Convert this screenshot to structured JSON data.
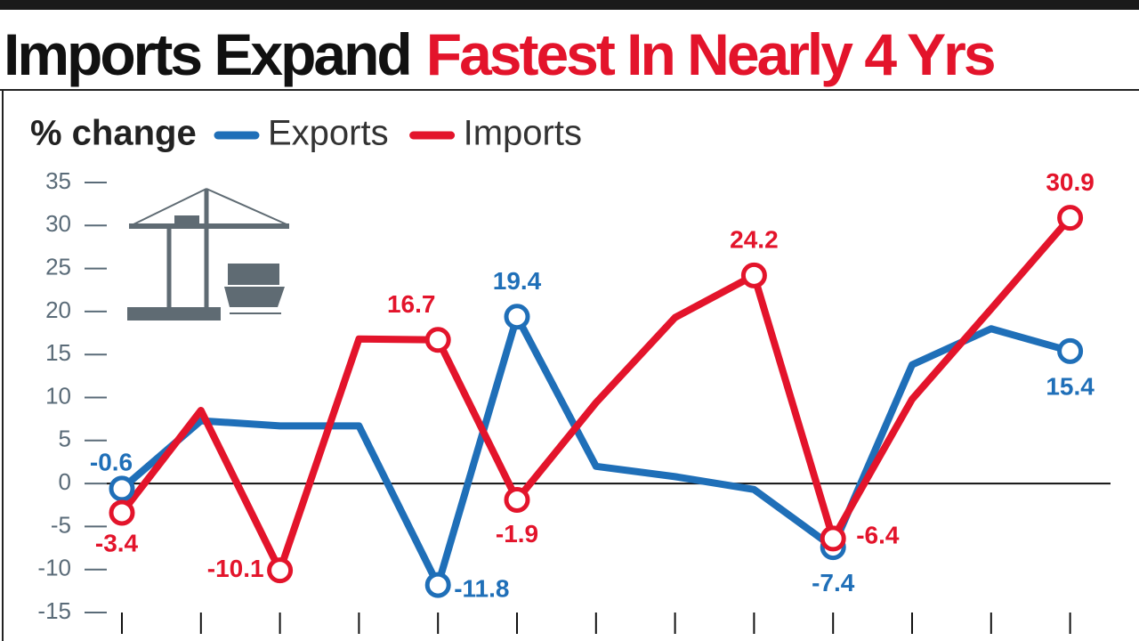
{
  "chart_data": {
    "type": "line",
    "title": "Imports Expand",
    "title_highlight": "Fastest In Nearly 4 Yrs",
    "ylabel": "% change",
    "categories": [
      null,
      null,
      null,
      null,
      null,
      null,
      null,
      null,
      null,
      null,
      null,
      null,
      null
    ],
    "series": [
      {
        "name": "Exports",
        "color": "#1f6fb8",
        "values": [
          -0.6,
          7.3,
          6.7,
          6.7,
          -11.8,
          19.4,
          2.0,
          0.8,
          -0.7,
          -7.4,
          13.8,
          18.0,
          15.4
        ],
        "value_labels": [
          "-0.6",
          null,
          null,
          null,
          "-11.8",
          "19.4",
          null,
          null,
          null,
          "-7.4",
          null,
          null,
          "15.4"
        ]
      },
      {
        "name": "Imports",
        "color": "#e3142b",
        "values": [
          -3.4,
          8.5,
          -10.1,
          16.8,
          16.7,
          -1.9,
          9.4,
          19.3,
          24.2,
          -6.4,
          9.8,
          20.3,
          30.9
        ],
        "value_labels": [
          "-3.4",
          null,
          "-10.1",
          null,
          "16.7",
          "-1.9",
          null,
          null,
          "24.2",
          "-6.4",
          null,
          null,
          "30.9"
        ]
      }
    ],
    "ylim": [
      -15,
      35
    ],
    "yticks": [
      -15,
      -10,
      -5,
      0,
      5,
      10,
      15,
      20,
      25,
      30,
      35
    ],
    "grid": false
  }
}
